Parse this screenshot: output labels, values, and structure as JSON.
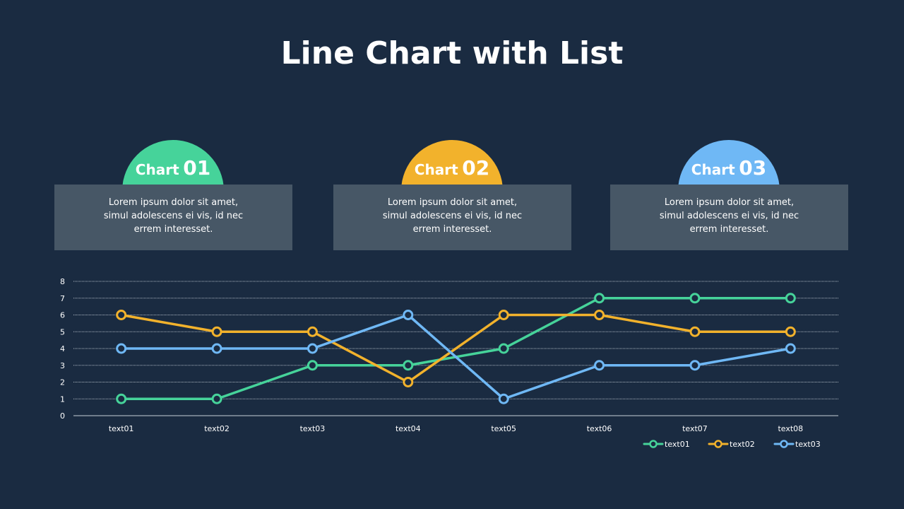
{
  "title": "Line Chart with List",
  "cards": [
    {
      "word": "Chart",
      "number": "01",
      "color": "#46d39a",
      "text": "Lorem ipsum dolor sit amet, simul adolescens ei vis, id nec errem interesset."
    },
    {
      "word": "Chart",
      "number": "02",
      "color": "#f2b22c",
      "text": "Lorem ipsum dolor sit amet, simul adolescens ei vis, id nec errem interesset."
    },
    {
      "word": "Chart",
      "number": "03",
      "color": "#6fb8f5",
      "text": "Lorem ipsum dolor sit amet, simul adolescens ei vis, id nec errem interesset."
    }
  ],
  "chart_data": {
    "type": "line",
    "categories": [
      "text01",
      "text02",
      "text03",
      "text04",
      "text05",
      "text06",
      "text07",
      "text08"
    ],
    "series": [
      {
        "name": "text01",
        "color": "#46d39a",
        "values": [
          1,
          1,
          3,
          3,
          4,
          7,
          7,
          7
        ]
      },
      {
        "name": "text02",
        "color": "#f2b22c",
        "values": [
          6,
          5,
          5,
          2,
          6,
          6,
          5,
          5
        ]
      },
      {
        "name": "text03",
        "color": "#6fb8f5",
        "values": [
          4,
          4,
          4,
          6,
          1,
          3,
          3,
          4
        ]
      }
    ],
    "ylim": [
      0,
      8
    ],
    "yticks": [
      0,
      1,
      2,
      3,
      4,
      5,
      6,
      7,
      8
    ],
    "grid": true,
    "legend": "bottom-right"
  }
}
